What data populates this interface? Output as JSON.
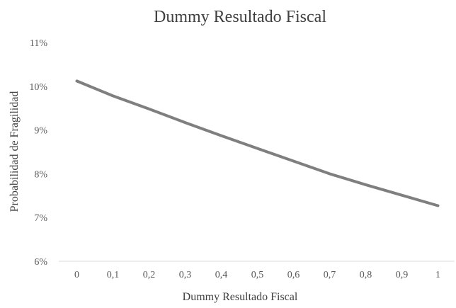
{
  "chart_data": {
    "type": "line",
    "title": "Dummy Resultado Fiscal",
    "xlabel": "Dummy Resultado Fiscal",
    "ylabel": "Probabilidad de Fragilidad",
    "x": [
      "0",
      "0,1",
      "0,2",
      "0,3",
      "0,4",
      "0,5",
      "0,6",
      "0,7",
      "0,8",
      "0,9",
      "1"
    ],
    "series": [
      {
        "values": [
          0.1012,
          0.0978,
          0.0948,
          0.0917,
          0.0887,
          0.0858,
          0.0829,
          0.08,
          0.0775,
          0.0751,
          0.0727
        ]
      }
    ],
    "ylim": [
      0.06,
      0.11
    ],
    "yticks": [
      "6%",
      "7%",
      "8%",
      "9%",
      "10%",
      "11%"
    ],
    "grid": false,
    "legend": "none",
    "line_color": "#7f7f7f",
    "axis_color": "#d9d9d9"
  }
}
